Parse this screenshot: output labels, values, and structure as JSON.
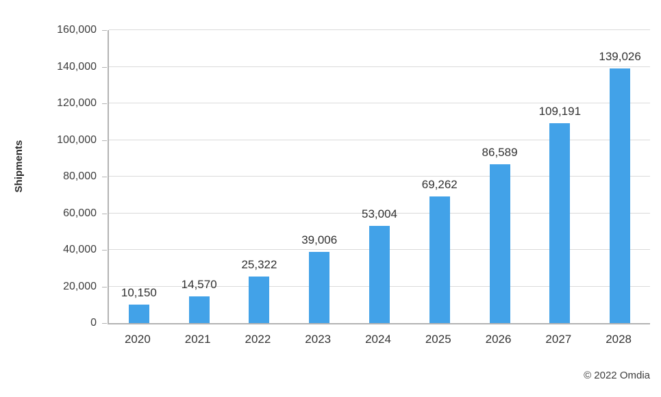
{
  "chart_data": {
    "type": "bar",
    "title": "",
    "xlabel": "",
    "ylabel": "Shipments",
    "categories": [
      "2020",
      "2021",
      "2022",
      "2023",
      "2024",
      "2025",
      "2026",
      "2027",
      "2028"
    ],
    "values": [
      10150,
      14570,
      25322,
      39006,
      53004,
      69262,
      86589,
      109191,
      139026
    ],
    "data_labels": [
      "10,150",
      "14,570",
      "25,322",
      "39,006",
      "53,004",
      "69,262",
      "86,589",
      "109,191",
      "139,026"
    ],
    "ylim": [
      0,
      160000
    ],
    "y_tick_step": 20000,
    "y_tick_labels": [
      "0",
      "20,000",
      "40,000",
      "60,000",
      "80,000",
      "100,000",
      "120,000",
      "140,000",
      "160,000"
    ],
    "grid": true,
    "legend": false,
    "source": "© 2022 Omdia",
    "colors": {
      "bar": "#42A2E8",
      "gridline": "#DADADA",
      "axis": "#B3B3B3",
      "label_text": "#303030",
      "tick_text": "#3C3C3C"
    }
  }
}
